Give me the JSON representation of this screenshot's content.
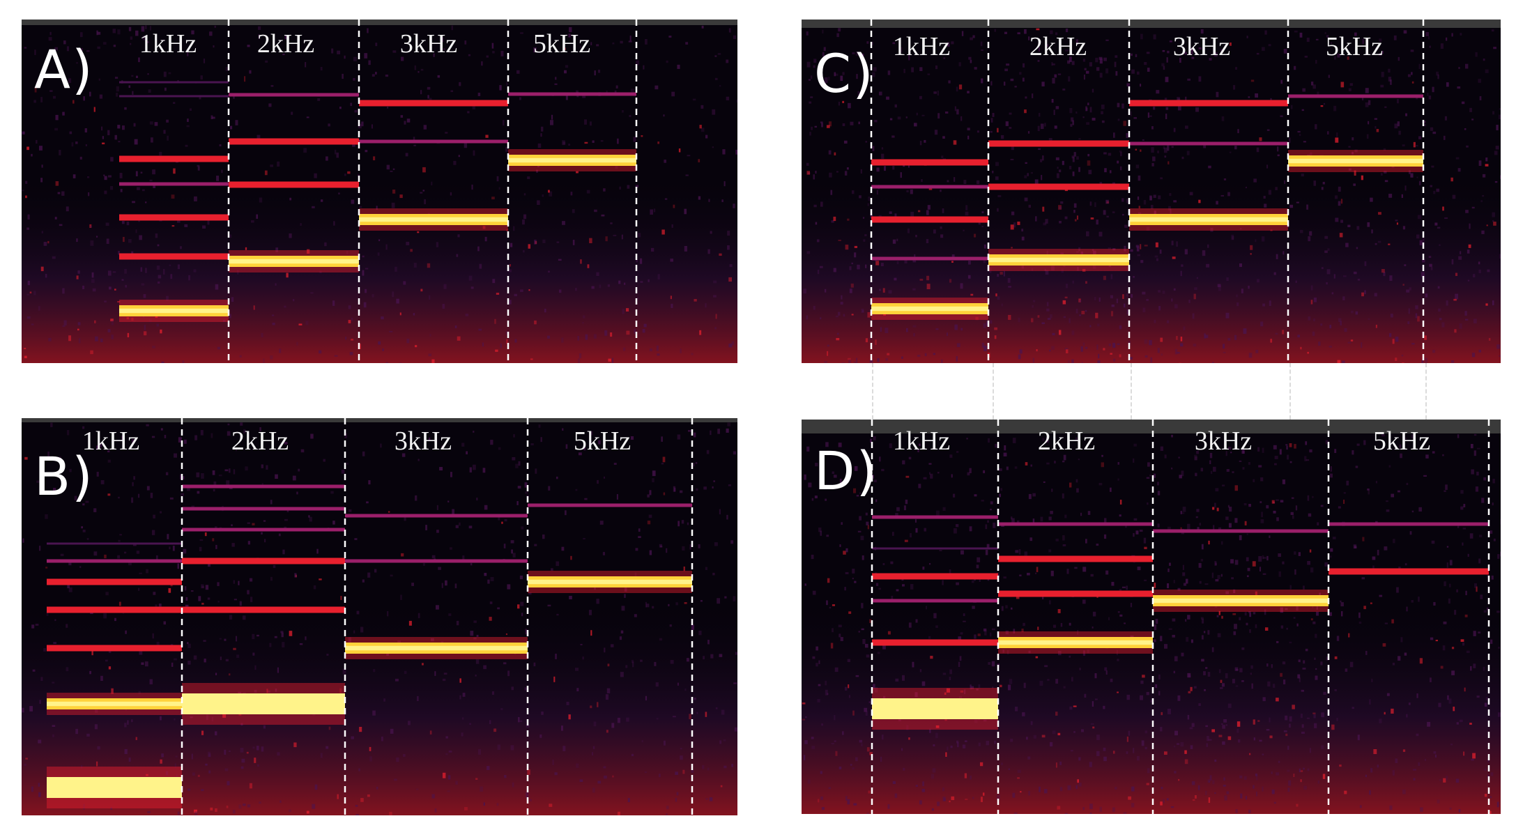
{
  "figure": {
    "panels": [
      {
        "id": "A",
        "label": "A)",
        "freq_labels": [
          "1kHz",
          "2kHz",
          "3kHz",
          "5kHz"
        ]
      },
      {
        "id": "B",
        "label": "B)",
        "freq_labels": [
          "1kHz",
          "2kHz",
          "3kHz",
          "5kHz"
        ]
      },
      {
        "id": "C",
        "label": "C)",
        "freq_labels": [
          "1kHz",
          "2kHz",
          "3kHz",
          "5kHz"
        ]
      },
      {
        "id": "D",
        "label": "D)",
        "freq_labels": [
          "1kHz",
          "2kHz",
          "3kHz",
          "5kHz"
        ]
      }
    ]
  },
  "colors": {
    "background": "#07030c",
    "harmonic_strong": "#fff38a",
    "harmonic_core": "#ffd23a",
    "harmonic_mid": "#e8202e",
    "harmonic_weak": "#9b1f6a",
    "noise": "#4a1450",
    "divider": "#ffffff"
  }
}
